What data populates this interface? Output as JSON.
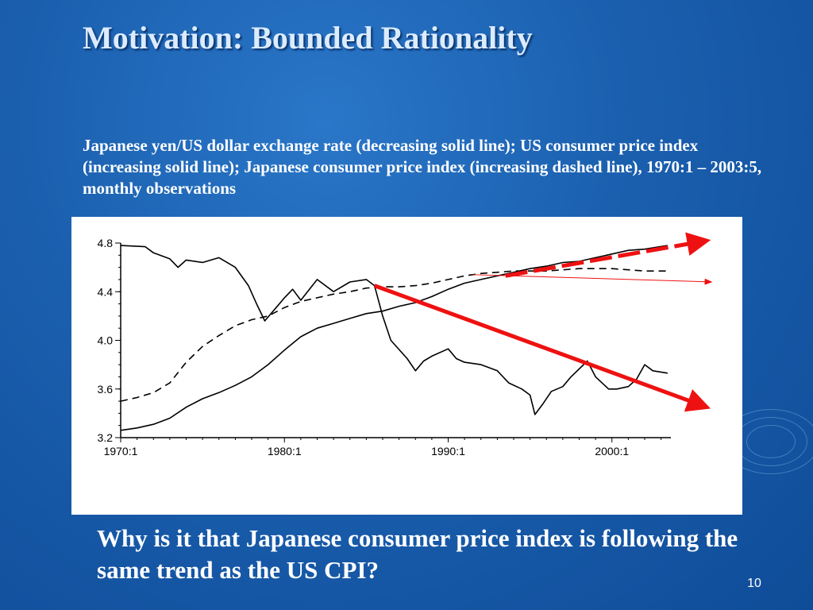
{
  "slide": {
    "title": "Motivation: Bounded Rationality",
    "caption": "Japanese yen/US dollar exchange rate (decreasing solid line); US consumer price index (increasing solid line); Japanese consumer price index (increasing dashed line), 1970:1 – 2003:5, monthly observations",
    "question": "Why is it that Japanese consumer price index is following the same trend as the US CPI?",
    "page_number": "10"
  },
  "colors": {
    "background": "#1a5fae",
    "title_text": "#dcecff",
    "body_text": "#ffffff",
    "series_line": "#000000",
    "annotation_arrow": "#ee1111"
  },
  "chart_data": {
    "type": "line",
    "title": "",
    "xlabel": "",
    "ylabel": "",
    "xlim": [
      1970.0,
      2003.6
    ],
    "ylim": [
      3.2,
      4.8
    ],
    "x_ticks": [
      1970,
      1980,
      1990,
      2000
    ],
    "x_tick_labels": [
      "1970:1",
      "1980:1",
      "1990:1",
      "2000:1"
    ],
    "y_ticks": [
      3.2,
      3.6,
      4.0,
      4.4,
      4.8
    ],
    "y_tick_labels": [
      "3.2",
      "3.6",
      "4.0",
      "4.4",
      "4.8"
    ],
    "grid": false,
    "series": [
      {
        "style": "solid",
        "points": [
          [
            1970.0,
            4.78
          ],
          [
            1971.5,
            4.77
          ],
          [
            1972.0,
            4.72
          ],
          [
            1973.0,
            4.67
          ],
          [
            1973.5,
            4.6
          ],
          [
            1974.0,
            4.66
          ],
          [
            1975.0,
            4.64
          ],
          [
            1976.0,
            4.68
          ],
          [
            1977.0,
            4.6
          ],
          [
            1977.8,
            4.45
          ],
          [
            1978.3,
            4.3
          ],
          [
            1978.8,
            4.16
          ],
          [
            1979.5,
            4.27
          ],
          [
            1980.0,
            4.35
          ],
          [
            1980.5,
            4.42
          ],
          [
            1981.0,
            4.33
          ],
          [
            1982.0,
            4.5
          ],
          [
            1983.0,
            4.4
          ],
          [
            1984.0,
            4.48
          ],
          [
            1985.0,
            4.5
          ],
          [
            1985.5,
            4.45
          ],
          [
            1986.0,
            4.2
          ],
          [
            1986.5,
            4.0
          ],
          [
            1987.5,
            3.85
          ],
          [
            1988.0,
            3.75
          ],
          [
            1988.5,
            3.83
          ],
          [
            1989.0,
            3.87
          ],
          [
            1990.0,
            3.93
          ],
          [
            1990.5,
            3.85
          ],
          [
            1991.0,
            3.82
          ],
          [
            1992.0,
            3.8
          ],
          [
            1993.0,
            3.75
          ],
          [
            1993.7,
            3.65
          ],
          [
            1994.5,
            3.6
          ],
          [
            1995.0,
            3.55
          ],
          [
            1995.3,
            3.39
          ],
          [
            1995.8,
            3.48
          ],
          [
            1996.3,
            3.58
          ],
          [
            1997.0,
            3.62
          ],
          [
            1997.5,
            3.7
          ],
          [
            1998.5,
            3.83
          ],
          [
            1999.0,
            3.7
          ],
          [
            1999.8,
            3.6
          ],
          [
            2000.3,
            3.6
          ],
          [
            2001.0,
            3.62
          ],
          [
            2001.5,
            3.68
          ],
          [
            2002.0,
            3.8
          ],
          [
            2002.5,
            3.75
          ],
          [
            2003.4,
            3.73
          ]
        ]
      },
      {
        "style": "solid",
        "points": [
          [
            1970.0,
            3.26
          ],
          [
            1971.0,
            3.28
          ],
          [
            1972.0,
            3.31
          ],
          [
            1973.0,
            3.36
          ],
          [
            1974.0,
            3.45
          ],
          [
            1975.0,
            3.52
          ],
          [
            1976.0,
            3.57
          ],
          [
            1977.0,
            3.63
          ],
          [
            1978.0,
            3.7
          ],
          [
            1979.0,
            3.8
          ],
          [
            1980.0,
            3.92
          ],
          [
            1981.0,
            4.03
          ],
          [
            1982.0,
            4.1
          ],
          [
            1983.0,
            4.14
          ],
          [
            1984.0,
            4.18
          ],
          [
            1985.0,
            4.22
          ],
          [
            1986.0,
            4.24
          ],
          [
            1987.0,
            4.28
          ],
          [
            1988.0,
            4.31
          ],
          [
            1989.0,
            4.36
          ],
          [
            1990.0,
            4.42
          ],
          [
            1991.0,
            4.47
          ],
          [
            1992.0,
            4.5
          ],
          [
            1993.0,
            4.53
          ],
          [
            1994.0,
            4.56
          ],
          [
            1995.0,
            4.59
          ],
          [
            1996.0,
            4.61
          ],
          [
            1997.0,
            4.64
          ],
          [
            1998.0,
            4.65
          ],
          [
            1999.0,
            4.68
          ],
          [
            2000.0,
            4.71
          ],
          [
            2001.0,
            4.74
          ],
          [
            2002.0,
            4.75
          ],
          [
            2003.4,
            4.78
          ]
        ]
      },
      {
        "style": "dashed",
        "points": [
          [
            1970.0,
            3.5
          ],
          [
            1971.0,
            3.53
          ],
          [
            1972.0,
            3.57
          ],
          [
            1973.0,
            3.65
          ],
          [
            1974.0,
            3.82
          ],
          [
            1975.0,
            3.95
          ],
          [
            1976.0,
            4.04
          ],
          [
            1977.0,
            4.12
          ],
          [
            1978.0,
            4.17
          ],
          [
            1979.0,
            4.2
          ],
          [
            1980.0,
            4.27
          ],
          [
            1981.0,
            4.32
          ],
          [
            1982.0,
            4.35
          ],
          [
            1983.0,
            4.38
          ],
          [
            1984.0,
            4.4
          ],
          [
            1985.0,
            4.43
          ],
          [
            1986.0,
            4.44
          ],
          [
            1987.0,
            4.44
          ],
          [
            1988.0,
            4.45
          ],
          [
            1989.0,
            4.47
          ],
          [
            1990.0,
            4.5
          ],
          [
            1991.0,
            4.53
          ],
          [
            1992.0,
            4.55
          ],
          [
            1993.0,
            4.56
          ],
          [
            1994.0,
            4.57
          ],
          [
            1995.0,
            4.57
          ],
          [
            1996.0,
            4.57
          ],
          [
            1997.0,
            4.58
          ],
          [
            1998.0,
            4.59
          ],
          [
            1999.0,
            4.59
          ],
          [
            2000.0,
            4.59
          ],
          [
            2001.0,
            4.58
          ],
          [
            2002.0,
            4.57
          ],
          [
            2003.4,
            4.57
          ]
        ]
      }
    ],
    "annotations": [
      {
        "shape": "arrow",
        "style": "thick-solid",
        "from": [
          1985.5,
          4.45
        ],
        "to": [
          2005.8,
          3.45
        ]
      },
      {
        "shape": "arrow",
        "style": "thick-dashed",
        "from": [
          1993.5,
          4.53
        ],
        "to": [
          2005.8,
          4.82
        ]
      },
      {
        "shape": "arrow",
        "style": "thin-solid",
        "from": [
          1991.5,
          4.54
        ],
        "to": [
          2006.1,
          4.48
        ]
      }
    ]
  }
}
